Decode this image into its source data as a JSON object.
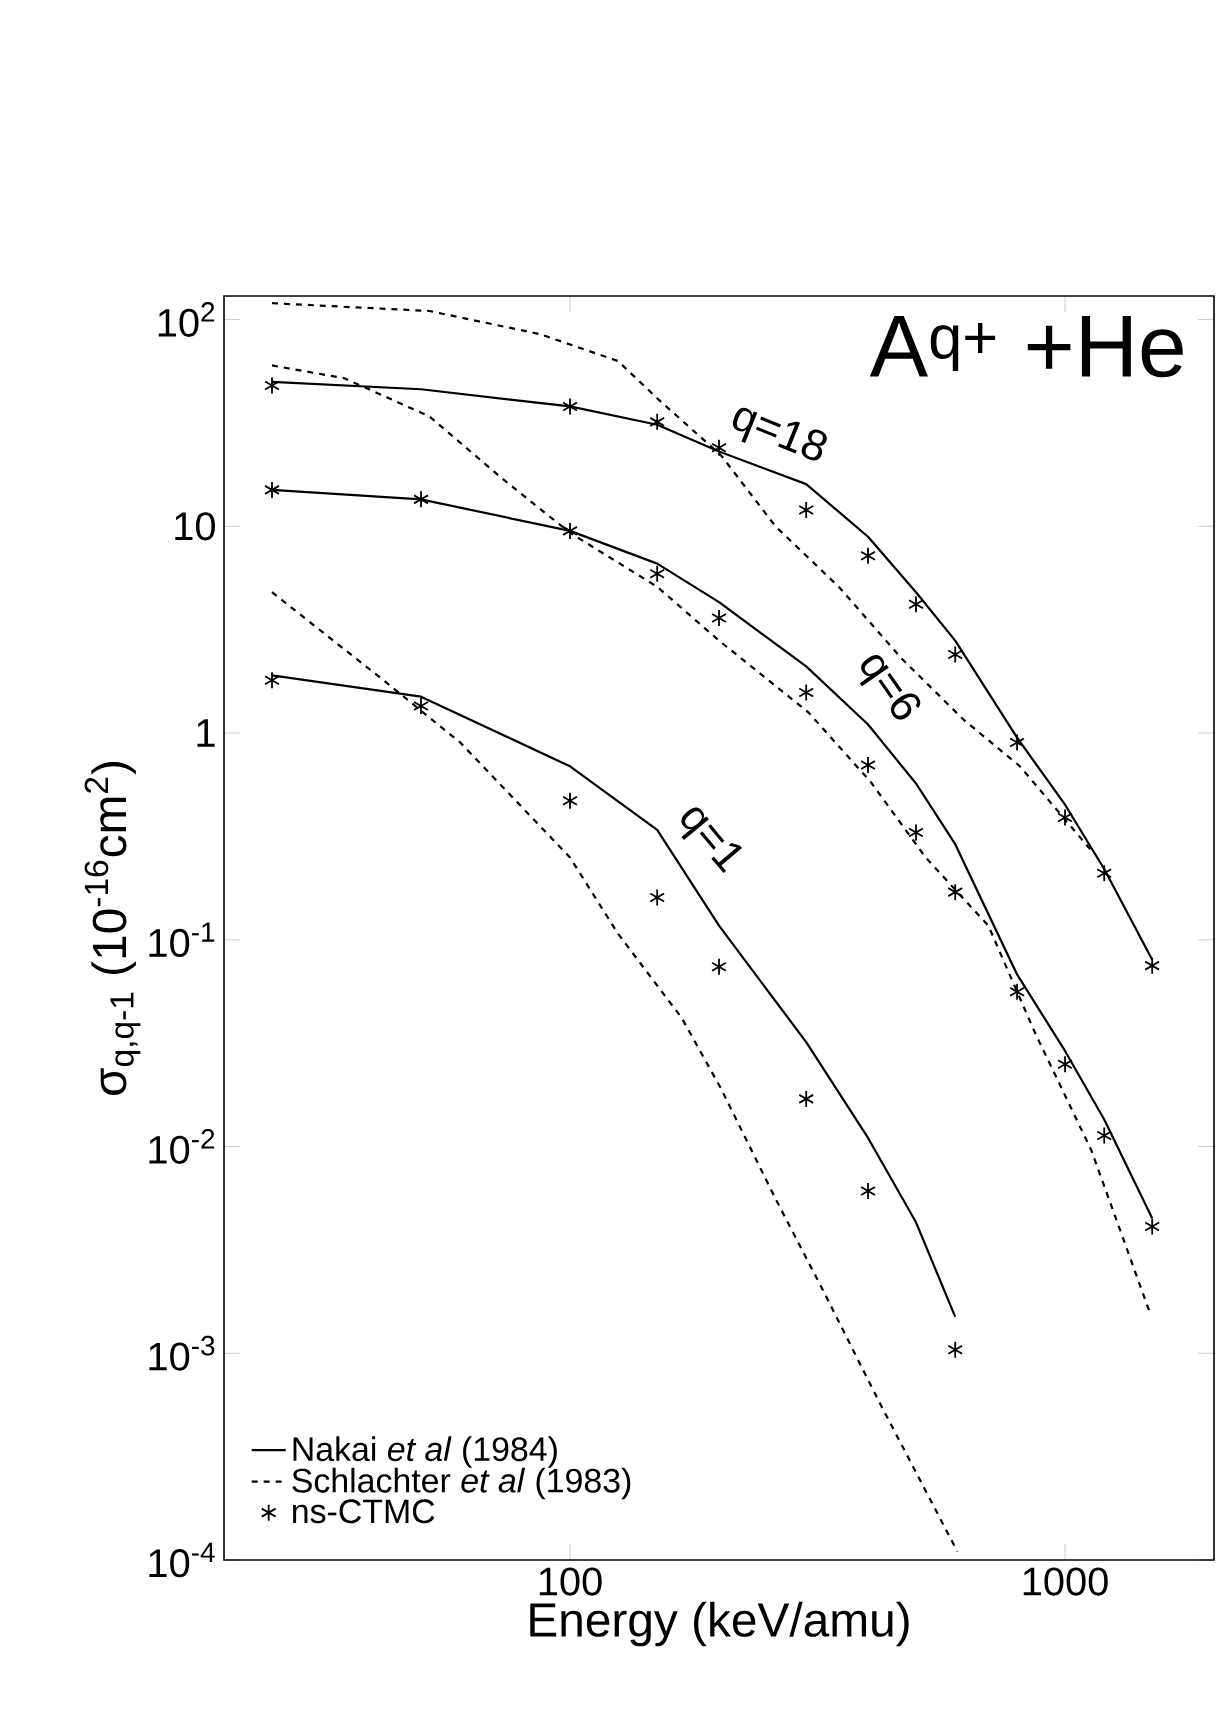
{
  "chart_data": {
    "type": "line",
    "title": "A$^{q+}$ +He",
    "xlabel": "Energy (keV/amu)",
    "ylabel": "σ$_{q,q-1}$ (10$^{-16}$cm$^{2}$)",
    "log": "xy",
    "xlim": [
      20,
      2000
    ],
    "ylim": [
      0.0001,
      130
    ],
    "xticks": [
      100,
      1000
    ],
    "yticks": [
      {
        "value": 0.0001,
        "label": "10$^{-4}$"
      },
      {
        "value": 0.001,
        "label": "10$^{-3}$"
      },
      {
        "value": 0.01,
        "label": "10$^{-2}$"
      },
      {
        "value": 0.1,
        "label": "10$^{-1}$"
      },
      1,
      10,
      {
        "value": 100,
        "label": "10$^{2}$"
      }
    ],
    "legend": "bottom left",
    "series": [
      {
        "name": "Nakai *et al* (1984)",
        "color": "#000000",
        "line_style": "solid",
        "marker": "none",
        "x": [
          25,
          50,
          100,
          150,
          200,
          300,
          400,
          500,
          600,
          800,
          1000,
          1200,
          1500
        ],
        "values": [
          50,
          46,
          38,
          31,
          23,
          16,
          8.9,
          4.8,
          2.8,
          0.95,
          0.45,
          0.22,
          0.08
        ]
      },
      {
        "color": "#000000",
        "line_style": "solid",
        "marker": "none",
        "x": [
          25,
          50,
          100,
          150,
          200,
          300,
          400,
          500,
          600,
          800,
          1000,
          1200,
          1500
        ],
        "values": [
          15,
          13.5,
          9.5,
          6.6,
          4.3,
          2.1,
          1.1,
          0.57,
          0.29,
          0.068,
          0.029,
          0.0135,
          0.0045
        ]
      },
      {
        "color": "#000000",
        "line_style": "solid",
        "marker": "none",
        "x": [
          25,
          50,
          100,
          150,
          200,
          300,
          400,
          500,
          600
        ],
        "values": [
          1.9,
          1.5,
          0.69,
          0.34,
          0.117,
          0.032,
          0.011,
          0.0043,
          0.0015
        ]
      },
      {
        "name": "Schlachter *et al* (1983)",
        "color": "#000000",
        "line_style": "dashed",
        "marker": "none",
        "x": [
          25,
          52,
          87,
          125,
          151,
          202,
          260,
          349,
          467,
          624,
          811,
          1130
        ],
        "values": [
          120,
          110,
          85,
          63,
          41,
          22,
          10,
          5.1,
          2.3,
          1.16,
          0.69,
          0.27
        ]
      },
      {
        "color": "#000000",
        "line_style": "dashed",
        "marker": "none",
        "x": [
          25,
          35,
          52,
          73,
          100,
          150,
          200,
          303,
          405,
          523,
          700,
          872,
          1130,
          1480
        ],
        "values": [
          60,
          52,
          34,
          17,
          9.3,
          5.1,
          2.8,
          1.26,
          0.58,
          0.25,
          0.117,
          0.035,
          0.0096,
          0.0016
        ]
      },
      {
        "color": "#000000",
        "line_style": "dashed",
        "marker": "none",
        "x": [
          25,
          42,
          60,
          100,
          125,
          168,
          202,
          260,
          325,
          420,
          606
        ],
        "values": [
          4.8,
          1.8,
          0.9,
          0.25,
          0.107,
          0.042,
          0.019,
          0.0056,
          0.002,
          0.00059,
          0.00011
        ]
      },
      {
        "name": "ns-CTMC",
        "color": "#000000",
        "type": "scatter",
        "marker": "cross",
        "x": [
          25,
          100,
          150,
          200,
          300,
          400,
          500,
          600,
          800,
          1000,
          1200,
          1500
        ],
        "values": [
          48,
          38,
          32,
          24,
          12,
          7.2,
          4.2,
          2.4,
          0.9,
          0.39,
          0.21,
          0.075
        ]
      },
      {
        "color": "#000000",
        "type": "scatter",
        "marker": "cross",
        "x": [
          25,
          50,
          100,
          150,
          200,
          300,
          400,
          500,
          600,
          800,
          1000,
          1200,
          1500
        ],
        "values": [
          15,
          13.5,
          9.5,
          5.9,
          3.6,
          1.57,
          0.7,
          0.33,
          0.17,
          0.056,
          0.025,
          0.0113,
          0.0041
        ]
      },
      {
        "color": "#000000",
        "type": "scatter",
        "marker": "cross",
        "x": [
          25,
          50,
          100,
          150,
          200,
          300,
          400,
          600
        ],
        "values": [
          1.8,
          1.35,
          0.47,
          0.16,
          0.074,
          0.017,
          0.0061,
          0.00104
        ]
      }
    ],
    "annotations": [
      "q=18",
      "q=6",
      "q=1"
    ]
  }
}
